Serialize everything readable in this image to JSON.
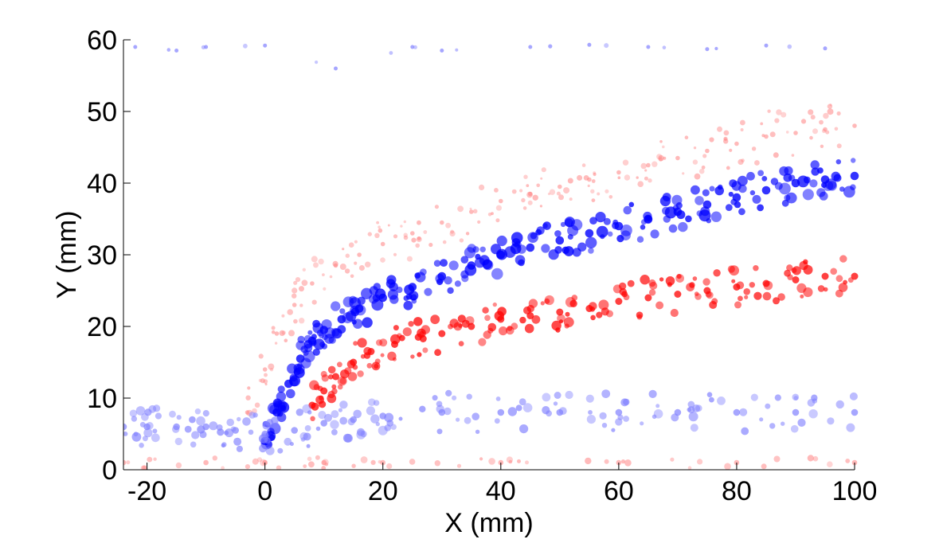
{
  "chart_data": {
    "type": "scatter",
    "title": "",
    "xlabel": "X (mm)",
    "ylabel": "Y (mm)",
    "xlim": [
      -24,
      100
    ],
    "ylim": [
      0,
      60
    ],
    "x_ticks": [
      -20,
      0,
      20,
      40,
      60,
      80,
      100
    ],
    "y_ticks": [
      0,
      10,
      20,
      30,
      40,
      50,
      60
    ],
    "x_tick_labels": [
      "-20",
      "0",
      "20",
      "40",
      "60",
      "80",
      "100"
    ],
    "y_tick_labels": [
      "0",
      "10",
      "20",
      "30",
      "40",
      "50",
      "60"
    ],
    "grid": false,
    "legend": "none",
    "colors": {
      "red_strong": "#ff0000",
      "red_light": "#ff8080",
      "blue_strong": "#0000ff",
      "blue_light": "#8080ff",
      "axis": "#000000"
    },
    "series": [
      {
        "color_key": "red_light",
        "structure": "outer band, upper edge",
        "x": [
          -3,
          0,
          2,
          5,
          8,
          12,
          16,
          20,
          25,
          30,
          35,
          40,
          45,
          50,
          55,
          60,
          65,
          70,
          75,
          80,
          85,
          90,
          95,
          100
        ],
        "y": [
          8,
          14,
          19,
          23,
          26,
          28.5,
          30,
          31.5,
          33,
          34.5,
          36,
          37.5,
          38.5,
          39.5,
          40.5,
          41.5,
          42.5,
          43.5,
          44.5,
          45.5,
          46.5,
          47,
          47.5,
          48
        ]
      },
      {
        "color_key": "blue_strong",
        "structure": "main curved band",
        "x": [
          0,
          2,
          4,
          6,
          8,
          10,
          13,
          16,
          20,
          25,
          30,
          35,
          40,
          45,
          50,
          55,
          60,
          65,
          70,
          75,
          80,
          85,
          90,
          95,
          100
        ],
        "y": [
          4,
          8,
          12,
          15.5,
          18,
          19.5,
          21,
          22.5,
          24,
          25.5,
          27,
          28.5,
          30,
          31,
          32,
          33,
          34,
          35,
          36,
          37,
          38,
          39,
          40,
          40.5,
          41
        ]
      },
      {
        "color_key": "red_strong",
        "structure": "inner band",
        "x": [
          8,
          10,
          12,
          15,
          18,
          22,
          26,
          30,
          35,
          40,
          45,
          50,
          55,
          60,
          65,
          70,
          75,
          80,
          85,
          90,
          95,
          100
        ],
        "y": [
          9,
          11,
          13,
          15,
          16.5,
          17.5,
          18.5,
          19,
          20,
          21,
          21.5,
          22,
          22.5,
          23.5,
          24,
          24.5,
          25,
          25.5,
          26,
          26.5,
          27,
          27
        ]
      },
      {
        "color_key": "blue_light",
        "structure": "near-wall band",
        "x": [
          -24,
          -20,
          -15,
          -10,
          -5,
          0,
          5,
          10,
          15,
          20,
          30,
          40,
          50,
          60,
          70,
          80,
          90,
          100
        ],
        "y": [
          6,
          6,
          6,
          6,
          5.5,
          5,
          5.5,
          6.5,
          7,
          7.5,
          8,
          8,
          8,
          8,
          8,
          8,
          8,
          8
        ]
      },
      {
        "color_key": "red_light",
        "structure": "wall layer",
        "x": [
          -24,
          -10,
          0,
          10,
          20,
          40,
          60,
          80,
          100
        ],
        "y": [
          1,
          1,
          1,
          1,
          1,
          1,
          1,
          1,
          1
        ]
      },
      {
        "color_key": "blue_light",
        "structure": "sparse points near top edge",
        "x": [
          -22,
          -15,
          -10,
          0,
          12,
          25,
          30,
          45,
          55,
          65,
          75,
          85,
          95
        ],
        "y": [
          59,
          58.5,
          59,
          59.2,
          56,
          59,
          58.5,
          59,
          59.3,
          59,
          58.7,
          59.2,
          58.8
        ]
      }
    ]
  }
}
